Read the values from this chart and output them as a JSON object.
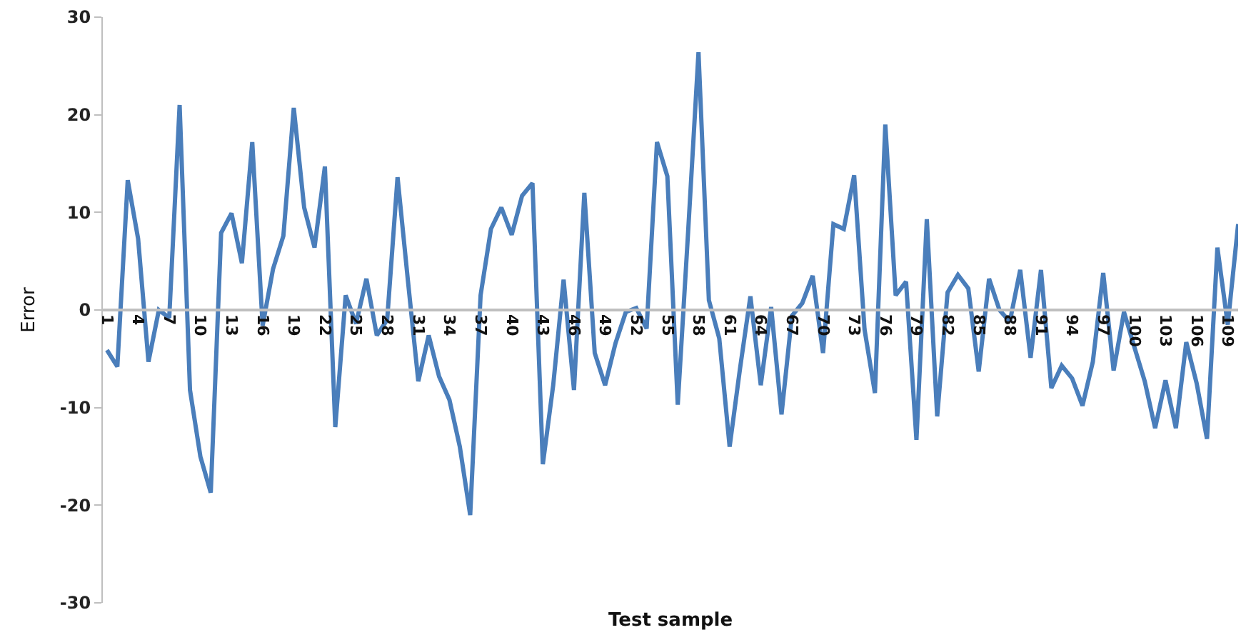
{
  "chart_data": {
    "type": "line",
    "xlabel": "Test sample",
    "ylabel": "Error",
    "categories": [
      "1",
      null,
      null,
      "4",
      null,
      null,
      "7",
      null,
      null,
      "10",
      null,
      null,
      "13",
      null,
      null,
      "16",
      null,
      null,
      "19",
      null,
      null,
      "22",
      null,
      null,
      "25",
      null,
      null,
      "28",
      null,
      null,
      "31",
      null,
      null,
      "34",
      null,
      null,
      "37",
      null,
      null,
      "40",
      null,
      null,
      "43",
      null,
      null,
      "46",
      null,
      null,
      "49",
      null,
      null,
      "52",
      null,
      null,
      "55",
      null,
      null,
      "58",
      null,
      null,
      "61",
      null,
      null,
      "64",
      null,
      null,
      "67",
      null,
      null,
      "70",
      null,
      null,
      "73",
      null,
      null,
      "76",
      null,
      null,
      "79",
      null,
      null,
      "82",
      null,
      null,
      "85",
      null,
      null,
      "88",
      null,
      null,
      "91",
      null,
      null,
      "94",
      null,
      null,
      "97",
      null,
      null,
      "100",
      null,
      null,
      "103",
      null,
      null,
      "106",
      null,
      null,
      "109",
      null
    ],
    "series": [
      {
        "color": "#4a7ebb",
        "values": [
          -4.1,
          -5.8,
          13.3,
          7.3,
          -5.3,
          0,
          -0.8,
          21,
          -8.2,
          -15,
          -18.7,
          7.9,
          9.9,
          4.8,
          17.2,
          -1.6,
          4.2,
          7.6,
          20.7,
          10.5,
          6.4,
          14.7,
          -12,
          1.5,
          -1.4,
          3.2,
          -2.6,
          -1,
          13.6,
          3,
          -7.3,
          -2.6,
          -6.8,
          -9.2,
          -14,
          -21,
          1.5,
          8.3,
          10.5,
          7.7,
          11.7,
          13,
          -15.8,
          -7.7,
          3.1,
          -8.2,
          12,
          -4.4,
          -7.7,
          -3.4,
          -0.2,
          0.2,
          -1.9,
          17.2,
          13.7,
          -9.7,
          8,
          26.4,
          1,
          -2.9,
          -14,
          -6,
          1.4,
          -7.7,
          0.3,
          -10.7,
          -0.6,
          0.7,
          3.5,
          -4.4,
          8.8,
          8.3,
          13.8,
          -2,
          -8.5,
          19,
          1.5,
          2.9,
          -13.3,
          9.3,
          -10.9,
          1.8,
          3.6,
          2.2,
          -6.3,
          3.2,
          0,
          -1.2,
          4.1,
          -4.9,
          4.1,
          -8,
          -5.7,
          -7,
          -9.8,
          -5.3,
          3.8,
          -6.2,
          -0.2,
          -3.8,
          -7.3,
          -12.1,
          -7.2,
          -12.1,
          -3.3,
          -7.5,
          -13.2,
          6.4,
          -1.5,
          8.8
        ]
      }
    ],
    "ylim": [
      -30,
      30
    ],
    "yticks": [
      -30,
      -20,
      -10,
      0,
      10,
      20,
      30
    ],
    "marker": "none",
    "line_style": "solid"
  }
}
